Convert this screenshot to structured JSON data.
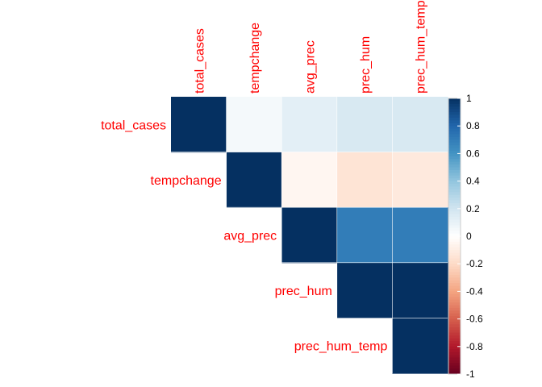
{
  "chart_data": {
    "type": "heatmap",
    "subtype": "correlation-matrix-upper-triangle",
    "variables": [
      "total_cases",
      "tempchange",
      "avg_prec",
      "prec_hum",
      "prec_hum_temp"
    ],
    "matrix": [
      [
        1.0,
        0.05,
        0.12,
        0.17,
        0.17
      ],
      [
        0.05,
        1.0,
        -0.05,
        -0.15,
        -0.12
      ],
      [
        0.12,
        -0.05,
        1.0,
        0.7,
        0.7
      ],
      [
        0.17,
        -0.15,
        0.7,
        1.0,
        1.0
      ],
      [
        0.17,
        -0.12,
        0.7,
        1.0,
        1.0
      ]
    ],
    "show": "upper",
    "color_scale": {
      "min": -1,
      "max": 1,
      "ticks": [
        "1",
        "0.8",
        "0.6",
        "0.4",
        "0.2",
        "0",
        "-0.2",
        "-0.4",
        "-0.6",
        "-0.8",
        "-1"
      ],
      "colors": [
        "#67001F",
        "#B2182B",
        "#D6604D",
        "#F4A582",
        "#FDDBC7",
        "#FFFFFF",
        "#D1E5F0",
        "#92C5DE",
        "#4393C3",
        "#2166AC",
        "#053061"
      ]
    },
    "label_color": "#FF0000",
    "legend_placement": "right"
  }
}
